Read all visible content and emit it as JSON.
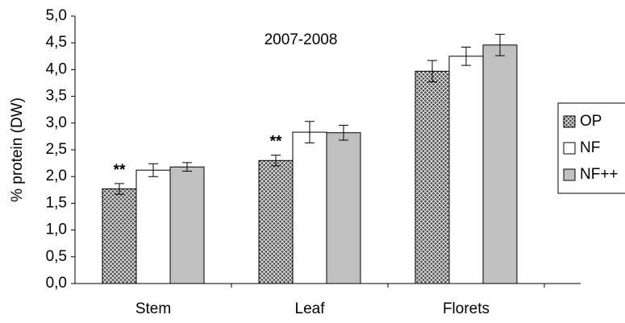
{
  "chart_data": {
    "type": "bar",
    "title": "2007-2008",
    "y_label": "% protein (DW)",
    "categories": [
      "Stem",
      "Leaf",
      "Florets"
    ],
    "series": [
      {
        "name": "OP",
        "color": "#4d4d4d",
        "pattern": "crosshatch",
        "values": [
          1.77,
          2.3,
          3.97
        ],
        "errors": [
          0.1,
          0.1,
          0.2
        ]
      },
      {
        "name": "NF",
        "color": "#ffffff",
        "values": [
          2.12,
          2.83,
          4.25
        ],
        "errors": [
          0.12,
          0.2,
          0.17
        ]
      },
      {
        "name": "NF++",
        "color": "#c0c0c0",
        "values": [
          2.18,
          2.82,
          4.46
        ],
        "errors": [
          0.08,
          0.14,
          0.2
        ]
      }
    ],
    "annotations": [
      "**",
      "**"
    ],
    "ylim": [
      0,
      5
    ],
    "yticks": [
      {
        "value": 0,
        "label": "0,0"
      },
      {
        "value": 0.5,
        "label": "0,5"
      },
      {
        "value": 1,
        "label": "1,0"
      },
      {
        "value": 1.5,
        "label": "1,5"
      },
      {
        "value": 2,
        "label": "2,0"
      },
      {
        "value": 2.5,
        "label": "2,5"
      },
      {
        "value": 3,
        "label": "3,0"
      },
      {
        "value": 3.5,
        "label": "3,5"
      },
      {
        "value": 4,
        "label": "4,0"
      },
      {
        "value": 4.5,
        "label": "4,5"
      },
      {
        "value": 5,
        "label": "5,0"
      }
    ],
    "grid": false,
    "legend": "right"
  }
}
